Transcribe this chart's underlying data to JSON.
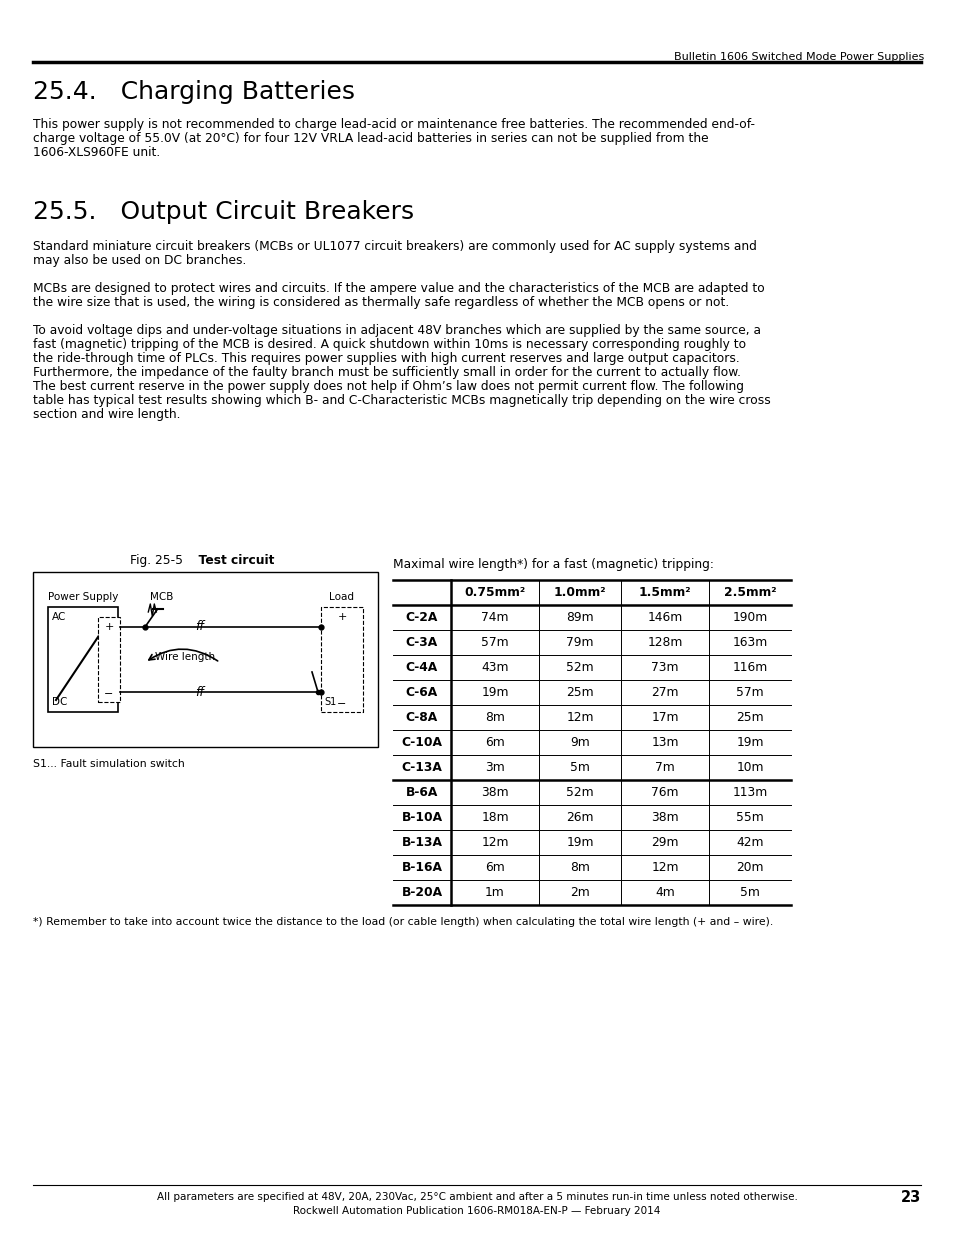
{
  "page_header": "Bulletin 1606 Switched Mode Power Supplies",
  "section1_title": "25.4.   Charging Batteries",
  "section1_body_line1": "This power supply is not recommended to charge lead-acid or maintenance free batteries. The recommended end-of-",
  "section1_body_line2": "charge voltage of 55.0V (at 20°C) for four 12V VRLA lead-acid batteries in series can not be supplied from the",
  "section1_body_line3": "1606-XLS960FE unit.",
  "section2_title": "25.5.   Output Circuit Breakers",
  "section2_para1_line1": "Standard miniature circuit breakers (MCBs or UL1077 circuit breakers) are commonly used for AC supply systems and",
  "section2_para1_line2": "may also be used on DC branches.",
  "section2_para2_line1": "MCBs are designed to protect wires and circuits. If the ampere value and the characteristics of the MCB are adapted to",
  "section2_para2_line2": "the wire size that is used, the wiring is considered as thermally safe regardless of whether the MCB opens or not.",
  "section2_para3_line1": "To avoid voltage dips and under-voltage situations in adjacent 48V branches which are supplied by the same source, a",
  "section2_para3_line2": "fast (magnetic) tripping of the MCB is desired. A quick shutdown within 10ms is necessary corresponding roughly to",
  "section2_para3_line3": "the ride-through time of PLCs. This requires power supplies with high current reserves and large output capacitors.",
  "section2_para3_line4": "Furthermore, the impedance of the faulty branch must be sufficiently small in order for the current to actually flow.",
  "section2_para3_line5": "The best current reserve in the power supply does not help if Ohm’s law does not permit current flow. The following",
  "section2_para3_line6": "table has typical test results showing which B- and C-Characteristic MCBs magnetically trip depending on the wire cross",
  "section2_para3_line7": "section and wire length.",
  "fig_label": "Fig. 25-5",
  "fig_label_bold": "Test circuit",
  "fig_caption_note": "S1... Fault simulation switch",
  "table_caption": "Maximal wire length*) for a fast (magnetic) tripping:",
  "table_headers": [
    "",
    "0.75mm²",
    "1.0mm²",
    "1.5mm²",
    "2.5mm²"
  ],
  "table_rows": [
    [
      "C-2A",
      "74m",
      "89m",
      "146m",
      "190m"
    ],
    [
      "C-3A",
      "57m",
      "79m",
      "128m",
      "163m"
    ],
    [
      "C-4A",
      "43m",
      "52m",
      "73m",
      "116m"
    ],
    [
      "C-6A",
      "19m",
      "25m",
      "27m",
      "57m"
    ],
    [
      "C-8A",
      "8m",
      "12m",
      "17m",
      "25m"
    ],
    [
      "C-10A",
      "6m",
      "9m",
      "13m",
      "19m"
    ],
    [
      "C-13A",
      "3m",
      "5m",
      "7m",
      "10m"
    ],
    [
      "B-6A",
      "38m",
      "52m",
      "76m",
      "113m"
    ],
    [
      "B-10A",
      "18m",
      "26m",
      "38m",
      "55m"
    ],
    [
      "B-13A",
      "12m",
      "19m",
      "29m",
      "42m"
    ],
    [
      "B-16A",
      "6m",
      "8m",
      "12m",
      "20m"
    ],
    [
      "B-20A",
      "1m",
      "2m",
      "4m",
      "5m"
    ]
  ],
  "footnote": "*) Remember to take into account twice the distance to the load (or cable length) when calculating the total wire length (+ and – wire).",
  "footer_text1": "All parameters are specified at 48V, 20A, 230Vac, 25°C ambient and after a 5 minutes run-in time unless noted otherwise.",
  "footer_text2": "Rockwell Automation Publication 1606-RM018A-EN-P — February 2014",
  "footer_page": "23",
  "bg_color": "#ffffff",
  "text_color": "#000000"
}
